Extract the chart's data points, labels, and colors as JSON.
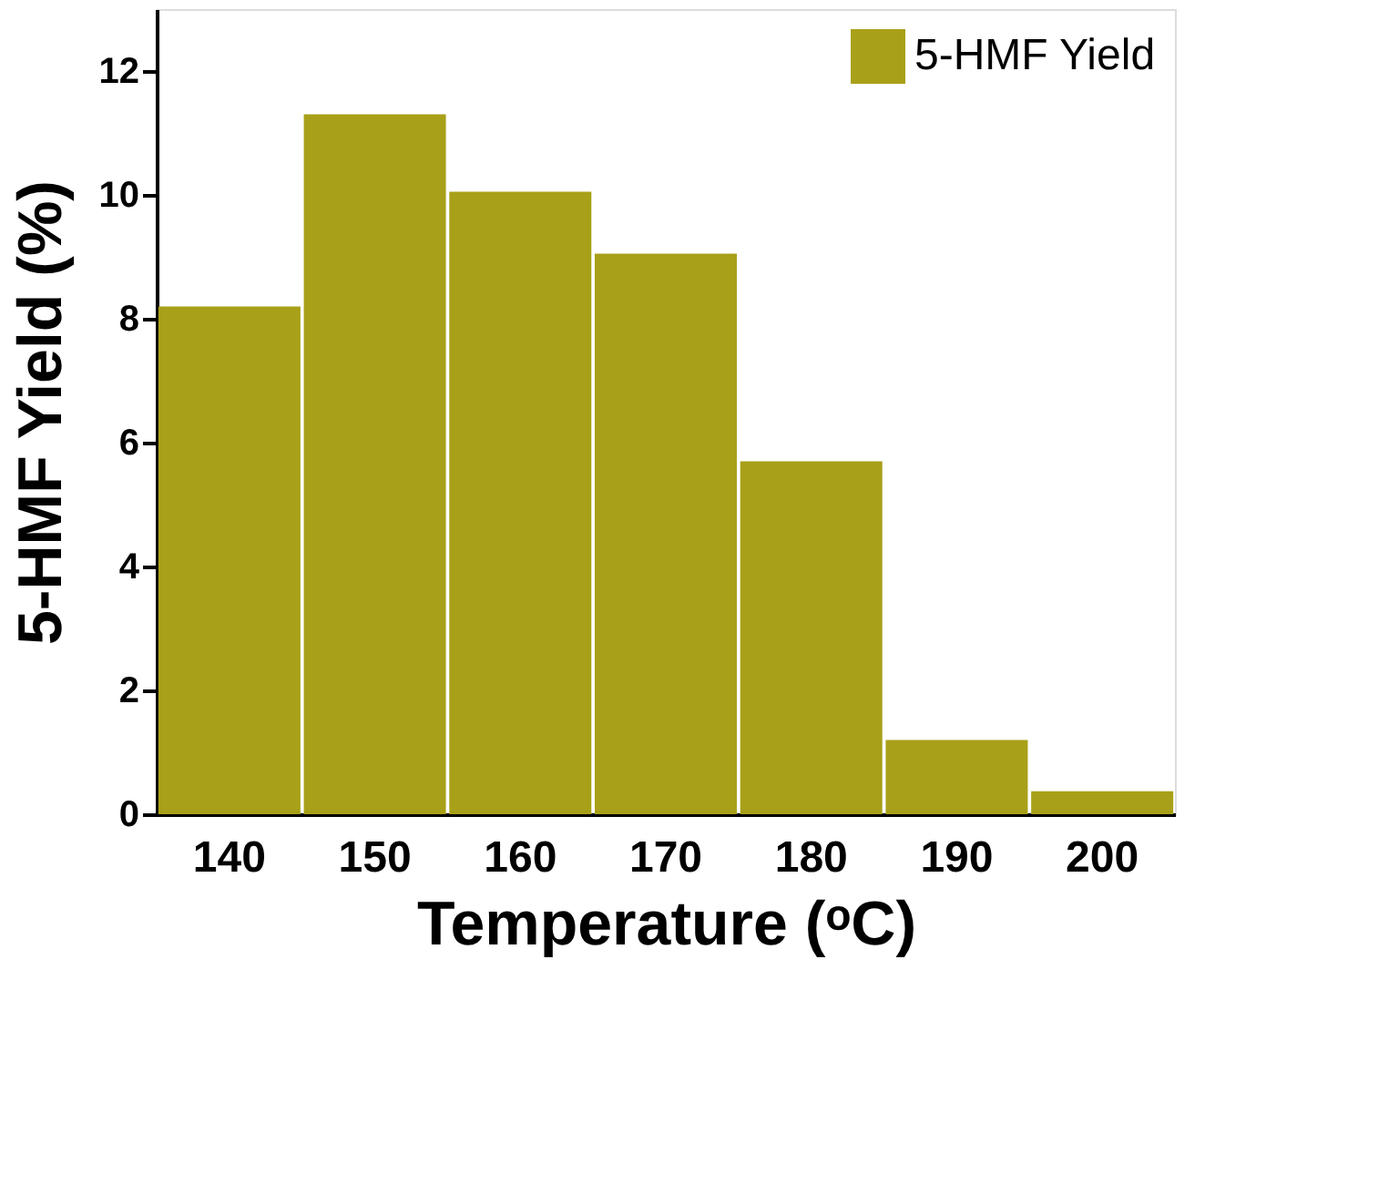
{
  "chart_data": {
    "type": "bar",
    "xlabel": "Temperature (ᵒC)",
    "ylabel": "5-HMF Yield (%)",
    "categories": [
      "140",
      "150",
      "160",
      "170",
      "180",
      "190",
      "200"
    ],
    "series": [
      {
        "name": "5-HMF Yield",
        "color": "#a8a018",
        "values": [
          8.2,
          11.3,
          10.05,
          9.05,
          5.7,
          1.2,
          0.37
        ]
      }
    ],
    "ylim": [
      0,
      13
    ],
    "yticks": [
      0,
      2,
      4,
      6,
      8,
      10,
      12
    ],
    "grid": false,
    "legend": "top right"
  }
}
